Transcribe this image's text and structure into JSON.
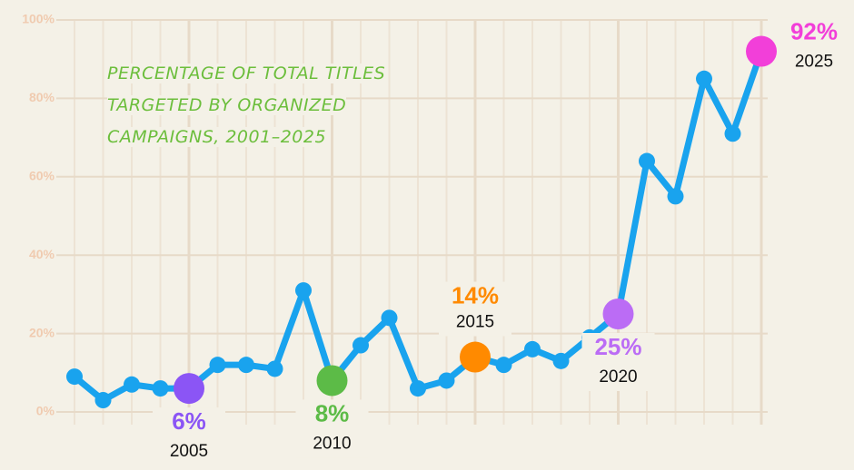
{
  "chart_data": {
    "type": "line",
    "title": "PERCENTAGE OF TOTAL TITLES TARGETED BY ORGANIZED CAMPAIGNS, 2001–2025",
    "categories": [
      null,
      null,
      null,
      null,
      "2005",
      null,
      null,
      null,
      null,
      "2010",
      null,
      null,
      null,
      null,
      "2015",
      null,
      null,
      null,
      null,
      "2020",
      null,
      null,
      null,
      null,
      "2025"
    ],
    "series": [
      {
        "name": null,
        "color": "#19a3ee",
        "values": [
          9,
          3,
          7,
          6,
          6,
          12,
          12,
          11,
          31,
          8,
          17,
          24,
          6,
          8,
          14,
          12,
          16,
          13,
          19,
          25,
          64,
          55,
          85,
          71,
          92
        ],
        "value_labels": [
          null,
          null,
          null,
          null,
          "6%",
          null,
          null,
          null,
          null,
          "8%",
          null,
          null,
          null,
          null,
          "14%",
          null,
          null,
          null,
          null,
          "25%",
          null,
          null,
          null,
          null,
          "92%"
        ],
        "point_colors": [
          null,
          null,
          null,
          null,
          "#8b55f5",
          null,
          null,
          null,
          null,
          "#5cbb47",
          null,
          null,
          null,
          null,
          "#ff8a00",
          null,
          null,
          null,
          null,
          "#bb6cf5",
          null,
          null,
          null,
          null,
          "#f23fd9"
        ]
      }
    ],
    "ylim": [
      0,
      100
    ],
    "yticks": [
      {
        "value": 0,
        "label": "0%"
      },
      {
        "value": 20,
        "label": "20%"
      },
      {
        "value": 40,
        "label": "40%"
      },
      {
        "value": 60,
        "label": "60%"
      },
      {
        "value": 80,
        "label": "80%"
      },
      {
        "value": 100,
        "label": "100%"
      }
    ],
    "grid": true
  }
}
